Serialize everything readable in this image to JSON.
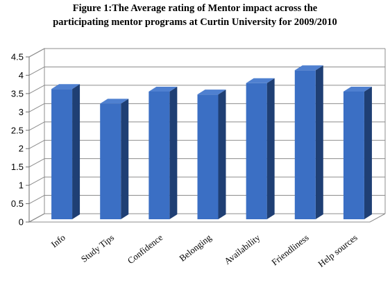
{
  "chart_data": {
    "type": "bar",
    "title": "Figure 1:The Average rating of Mentor impact across the",
    "subtitle": "participating mentor programs at Curtin University for 2009/2010",
    "categories": [
      "Info",
      "Study Tips",
      "Confidence",
      "Belonging",
      "Availability",
      "Friendliness",
      "Help sources"
    ],
    "values": [
      3.55,
      3.15,
      3.48,
      3.4,
      3.71,
      4.06,
      3.48
    ],
    "ylim": [
      0,
      4.5
    ],
    "yticks": [
      "0",
      "0.5",
      "1",
      "1.5",
      "2",
      "2.5",
      "3",
      "3.5",
      "4",
      "4.5"
    ],
    "xlabel": "",
    "ylabel": "",
    "grid": true,
    "legend": "none",
    "bar_color": "#3B6FC4",
    "bar_top_color": "#4F80D0",
    "bar_side_color": "#1F3F74"
  }
}
